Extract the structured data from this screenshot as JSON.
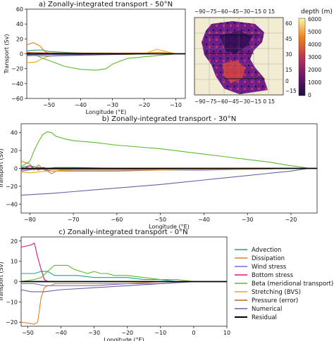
{
  "figure": {
    "legend": {
      "entries": [
        {
          "key": "advection",
          "label": "Advection",
          "color": "#17a589"
        },
        {
          "key": "dissipation",
          "label": "Dissipation",
          "color": "#e67e22"
        },
        {
          "key": "wind",
          "label": "Wind stress",
          "color": "#7d6bd6"
        },
        {
          "key": "bottom",
          "label": "Bottom stress",
          "color": "#e0137a"
        },
        {
          "key": "beta",
          "label": "Beta (meridional transport)",
          "color": "#5dba2e"
        },
        {
          "key": "stretch",
          "label": "Stretching (BVS)",
          "color": "#e6a817"
        },
        {
          "key": "pressure",
          "label": "Pressure (error)",
          "color": "#b5651d"
        },
        {
          "key": "numerical",
          "label": "Numerical",
          "color": "#6b5ea8"
        },
        {
          "key": "residual",
          "label": "Residual",
          "color": "#000000"
        }
      ]
    },
    "map": {
      "top_ticks": "−90−75−60−45−30−15   0   15",
      "bottom_ticks": "−90−75−60−45−30−15   0   15",
      "lat_ticks": [
        "60",
        "45",
        "30",
        "15",
        "0",
        "−15"
      ],
      "colorbar_label": "depth (m)",
      "colorbar_ticks": [
        "6000",
        "5000",
        "4000",
        "3000",
        "2000",
        "1000",
        "0"
      ]
    }
  },
  "chart_data": [
    {
      "type": "line",
      "title": "a) Zonally-integrated transport - 50°N",
      "xlabel": "Longitude (°E)",
      "ylabel": "Transport (Sv)",
      "xlim": [
        -57,
        -7
      ],
      "ylim": [
        -60,
        60
      ],
      "xticks": [
        -50,
        -40,
        -30,
        -20,
        -10
      ],
      "yticks": [
        -60,
        -40,
        -20,
        0,
        20,
        40,
        60
      ],
      "series": [
        {
          "key": "advection",
          "x": [
            -57,
            -54,
            -52,
            -50,
            -45,
            -40,
            -35,
            -30,
            -25,
            -20,
            -15,
            -10
          ],
          "y": [
            4,
            5,
            5,
            3,
            2,
            1,
            1,
            1,
            0,
            0,
            0,
            0
          ]
        },
        {
          "key": "dissipation",
          "x": [
            -57,
            -55,
            -53,
            -51,
            -50,
            -45,
            -40,
            -30,
            -20,
            -15,
            -12,
            -10
          ],
          "y": [
            12,
            15,
            11,
            2,
            1,
            1,
            1,
            1,
            1,
            2,
            1,
            0
          ]
        },
        {
          "key": "wind",
          "x": [
            -57,
            -50,
            -40,
            -30,
            -20,
            -10
          ],
          "y": [
            -1,
            -1,
            -1,
            0,
            0,
            0
          ]
        },
        {
          "key": "bottom",
          "x": [
            -57,
            -54,
            -52,
            -50,
            -45,
            -40,
            -30,
            -20,
            -10
          ],
          "y": [
            1,
            0,
            1,
            1,
            0,
            0,
            0,
            0,
            0
          ]
        },
        {
          "key": "beta",
          "x": [
            -57,
            -54,
            -52,
            -50,
            -45,
            -40,
            -35,
            -32,
            -30,
            -27,
            -25,
            -22,
            -20,
            -17,
            -15,
            -12,
            -10
          ],
          "y": [
            -3,
            -2,
            -6,
            -9,
            -17,
            -21,
            -22,
            -20,
            -14,
            -9,
            -6,
            -5,
            -4,
            -3,
            -2,
            -1,
            0
          ]
        },
        {
          "key": "stretch",
          "x": [
            -57,
            -54,
            -52,
            -50,
            -45,
            -40,
            -35,
            -30,
            -25,
            -20,
            -16,
            -14,
            -12,
            -10
          ],
          "y": [
            -12,
            -11,
            -6,
            -3,
            -2,
            -2,
            -1,
            -1,
            -1,
            0,
            6,
            4,
            2,
            0
          ]
        },
        {
          "key": "pressure",
          "x": [
            -57,
            -50,
            -40,
            -30,
            -20,
            -10
          ],
          "y": [
            2,
            1,
            1,
            0,
            0,
            0
          ]
        },
        {
          "key": "numerical",
          "x": [
            -57,
            -50,
            -40,
            -30,
            -20,
            -10
          ],
          "y": [
            -2,
            -3,
            -2,
            -1,
            0,
            0
          ]
        },
        {
          "key": "residual",
          "x": [
            -57,
            -7
          ],
          "y": [
            0,
            0
          ]
        }
      ]
    },
    {
      "type": "line",
      "title": "b) Zonally-integrated transport - 30°N",
      "xlabel": "Longitude (°E)",
      "ylabel": "Transport (Sv)",
      "xlim": [
        -82,
        -14
      ],
      "ylim": [
        -50,
        50
      ],
      "xticks": [
        -80,
        -70,
        -60,
        -50,
        -40,
        -30,
        -20
      ],
      "yticks": [
        -40,
        -20,
        0,
        20,
        40
      ],
      "series": [
        {
          "key": "advection",
          "x": [
            -82,
            -80,
            -78,
            -76,
            -74,
            -70,
            -60,
            -50,
            -40,
            -30,
            -20,
            -16
          ],
          "y": [
            1,
            3,
            1,
            0,
            1,
            1,
            0,
            0,
            0,
            0,
            0,
            0
          ]
        },
        {
          "key": "dissipation",
          "x": [
            -82,
            -80,
            -79,
            -78,
            -77,
            -76,
            -75,
            -74,
            -73,
            -70,
            -60,
            -50,
            -40,
            -30,
            -20,
            -16
          ],
          "y": [
            8,
            5,
            -2,
            4,
            -1,
            -3,
            -6,
            -3,
            -2,
            -2,
            -2,
            -1,
            -1,
            -1,
            0,
            0
          ]
        },
        {
          "key": "wind",
          "x": [
            -82,
            -79,
            -77,
            -75,
            -70,
            -60,
            -50,
            -40,
            -30,
            -20,
            -16
          ],
          "y": [
            -3,
            -1,
            -1,
            -3,
            -3,
            -3,
            -2,
            -2,
            -1,
            0,
            0
          ]
        },
        {
          "key": "bottom",
          "x": [
            -82,
            -80,
            -79,
            -78,
            -77,
            -76,
            -70,
            -60,
            -40,
            -20
          ],
          "y": [
            -2,
            3,
            0,
            -2,
            1,
            0,
            0,
            0,
            0,
            0
          ]
        },
        {
          "key": "beta",
          "x": [
            -82,
            -81,
            -80,
            -79,
            -78,
            -77,
            -76,
            -75,
            -74,
            -72,
            -70,
            -65,
            -60,
            -55,
            -50,
            -45,
            -40,
            -35,
            -30,
            -25,
            -20,
            -17,
            -16
          ],
          "y": [
            2,
            5,
            8,
            20,
            30,
            38,
            41,
            40,
            36,
            33,
            31,
            29,
            26,
            24,
            22,
            19,
            16,
            13,
            10,
            7,
            3,
            1,
            0
          ]
        },
        {
          "key": "stretch",
          "x": [
            -82,
            -80,
            -78,
            -76,
            -74,
            -70,
            -60,
            -50,
            -40,
            -30,
            -20,
            -16
          ],
          "y": [
            -4,
            -5,
            -4,
            -3,
            -3,
            -2,
            -2,
            -2,
            -1,
            -1,
            0,
            0
          ]
        },
        {
          "key": "pressure",
          "x": [
            -82,
            -70,
            -60,
            -40,
            -20
          ],
          "y": [
            -1,
            -1,
            -1,
            0,
            0
          ]
        },
        {
          "key": "numerical",
          "x": [
            -82,
            -75,
            -70,
            -60,
            -50,
            -40,
            -30,
            -20,
            -16
          ],
          "y": [
            -30,
            -28,
            -26,
            -22,
            -18,
            -13,
            -8,
            -3,
            0
          ]
        },
        {
          "key": "residual",
          "x": [
            -82,
            -14
          ],
          "y": [
            0,
            0
          ]
        }
      ]
    },
    {
      "type": "line",
      "title": "c) Zonally-integrated transport - 0°N",
      "xlabel": "Longitude (°E)",
      "ylabel": "Transport (Sv)",
      "xlim": [
        -52,
        10
      ],
      "ylim": [
        -22,
        22
      ],
      "xticks": [
        -50,
        -40,
        -30,
        -20,
        -10,
        0,
        10
      ],
      "yticks": [
        -20,
        -10,
        0,
        10,
        20
      ],
      "series": [
        {
          "key": "advection",
          "x": [
            -52,
            -48,
            -46,
            -44,
            -42,
            -40,
            -35,
            -30,
            -25,
            -20,
            -15,
            -10,
            -5,
            0,
            4
          ],
          "y": [
            4,
            4,
            5,
            5,
            3,
            3,
            3,
            2,
            2,
            2,
            1,
            1,
            0,
            0,
            0
          ]
        },
        {
          "key": "dissipation",
          "x": [
            -52,
            -48,
            -47,
            -46,
            -45,
            -44,
            -43,
            -42,
            -40,
            -35,
            -30,
            -20,
            -10,
            0,
            4
          ],
          "y": [
            -20,
            -21,
            -20,
            -8,
            -3,
            -2,
            -2,
            -1,
            -1,
            -1,
            -1,
            -1,
            0,
            0,
            0
          ]
        },
        {
          "key": "wind",
          "x": [
            -52,
            -48,
            -45,
            -40,
            -30,
            -20,
            -10,
            0,
            4
          ],
          "y": [
            -1,
            -1,
            -2,
            -2,
            -2,
            -1,
            -1,
            0,
            0
          ]
        },
        {
          "key": "bottom",
          "x": [
            -52,
            -49,
            -48,
            -47,
            -46,
            -45,
            -44,
            -43,
            -40,
            -30,
            -20
          ],
          "y": [
            17,
            18,
            19,
            12,
            6,
            1,
            0,
            0,
            0,
            0,
            0
          ]
        },
        {
          "key": "beta",
          "x": [
            -52,
            -48,
            -46,
            -44,
            -42,
            -40,
            -38,
            -36,
            -34,
            -32,
            -30,
            -28,
            -26,
            -24,
            -22,
            -20,
            -15,
            -10,
            -5,
            0,
            4
          ],
          "y": [
            0,
            1,
            2,
            5,
            8,
            8,
            8,
            6,
            5,
            4,
            5,
            4,
            4,
            3,
            3,
            3,
            2,
            1,
            1,
            0,
            0
          ]
        },
        {
          "key": "stretch",
          "x": [
            -52,
            -45,
            -40,
            -30,
            -20,
            -10,
            0,
            4
          ],
          "y": [
            0,
            0,
            0,
            0,
            0,
            0,
            0,
            0
          ]
        },
        {
          "key": "pressure",
          "x": [
            -52,
            -40,
            -20,
            0,
            4
          ],
          "y": [
            0,
            0,
            0,
            0,
            0
          ]
        },
        {
          "key": "numerical",
          "x": [
            -52,
            -49,
            -47,
            -45,
            -40,
            -30,
            -20,
            -10,
            0,
            4
          ],
          "y": [
            -4,
            -5,
            -5,
            -5,
            -4,
            -3,
            -2,
            -1,
            0,
            0
          ]
        },
        {
          "key": "residual",
          "x": [
            -52,
            10
          ],
          "y": [
            0,
            0
          ]
        }
      ]
    }
  ]
}
